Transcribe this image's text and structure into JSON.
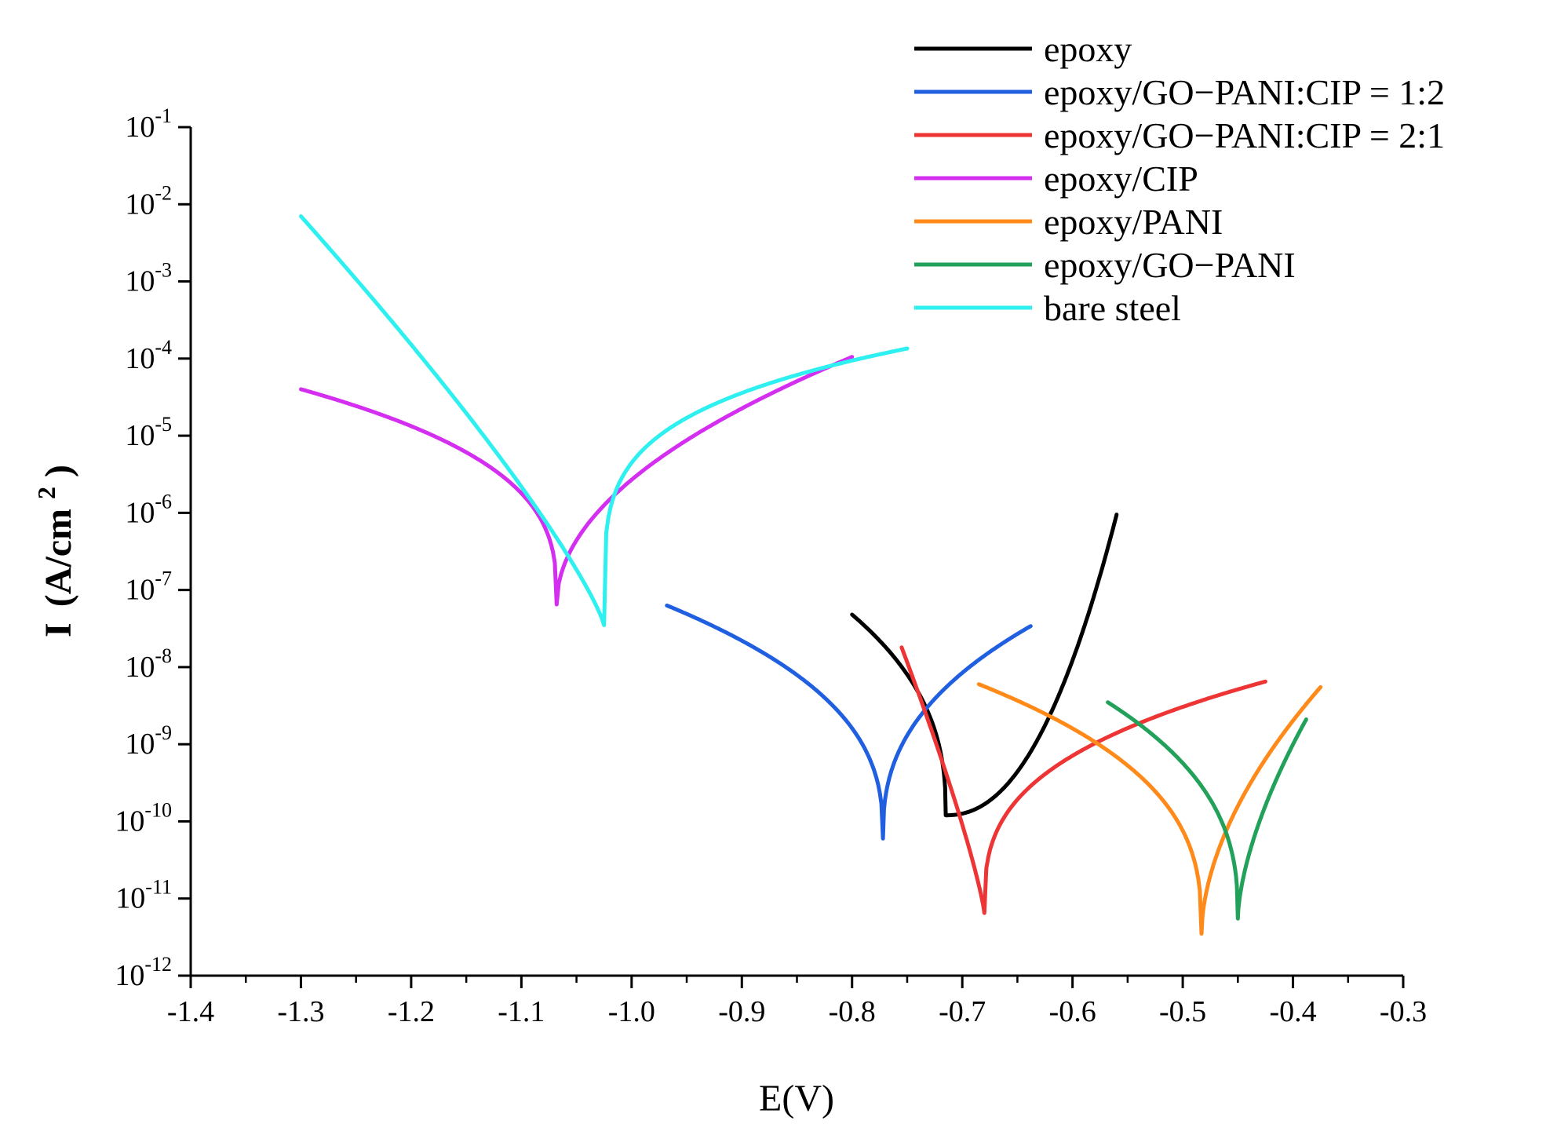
{
  "chart_data": {
    "type": "line",
    "title": "",
    "xlabel": "E(V)",
    "ylabel_main": "I",
    "ylabel_unit_pre": "(A/cm",
    "ylabel_unit_exp": "2",
    "ylabel_unit_post": ")",
    "xlim": [
      -1.4,
      -0.3
    ],
    "ylim_log10": [
      -12,
      -1
    ],
    "yscale": "log",
    "legend_position": "top-right",
    "xticks": [
      {
        "value": -1.4,
        "label": "-1.4"
      },
      {
        "value": -1.3,
        "label": "-1.3"
      },
      {
        "value": -1.2,
        "label": "-1.2"
      },
      {
        "value": -1.1,
        "label": "-1.1"
      },
      {
        "value": -1.0,
        "label": "-1.0"
      },
      {
        "value": -0.9,
        "label": "-0.9"
      },
      {
        "value": -0.8,
        "label": "-0.8"
      },
      {
        "value": -0.7,
        "label": "-0.7"
      },
      {
        "value": -0.6,
        "label": "-0.6"
      },
      {
        "value": -0.5,
        "label": "-0.5"
      },
      {
        "value": -0.4,
        "label": "-0.4"
      },
      {
        "value": -0.3,
        "label": "-0.3"
      }
    ],
    "yticks": [
      {
        "exp": -1,
        "base": "10",
        "sup": "-1"
      },
      {
        "exp": -2,
        "base": "10",
        "sup": "-2"
      },
      {
        "exp": -3,
        "base": "10",
        "sup": "-3"
      },
      {
        "exp": -4,
        "base": "10",
        "sup": "-4"
      },
      {
        "exp": -5,
        "base": "10",
        "sup": "-5"
      },
      {
        "exp": -6,
        "base": "10",
        "sup": "-6"
      },
      {
        "exp": -7,
        "base": "10",
        "sup": "-7"
      },
      {
        "exp": -8,
        "base": "10",
        "sup": "-8"
      },
      {
        "exp": -9,
        "base": "10",
        "sup": "-9"
      },
      {
        "exp": -10,
        "base": "10",
        "sup": "-10"
      },
      {
        "exp": -11,
        "base": "10",
        "sup": "-11"
      },
      {
        "exp": -12,
        "base": "10",
        "sup": "-12"
      }
    ],
    "series": [
      {
        "name": "epoxy",
        "color": "#000000",
        "ecorr": -0.715,
        "ymin": 1.2e-10,
        "cathodic": {
          "x": -0.8,
          "y": 4.8e-08
        },
        "anodic": {
          "x": -0.56,
          "y": 9.5e-07
        },
        "cathodic_shape": 2.5,
        "anodic_shape": 0.45
      },
      {
        "name": "epoxy/GO−PANI:CIP = 1:2",
        "color": "#1f5fe0",
        "ecorr": -0.772,
        "ymin": 6e-11,
        "cathodic": {
          "x": -0.968,
          "y": 6.3e-08
        },
        "anodic": {
          "x": -0.638,
          "y": 3.4e-08
        },
        "cathodic_shape": 2.6,
        "anodic_shape": 2.5
      },
      {
        "name": "epoxy/GO−PANI:CIP = 2:1",
        "color": "#ee3535",
        "ecorr": -0.68,
        "ymin": 6.5e-12,
        "cathodic": {
          "x": -0.755,
          "y": 1.8e-08
        },
        "anodic": {
          "x": -0.425,
          "y": 6.5e-09
        },
        "cathodic_shape": 1.2,
        "anodic_shape": 3.0
      },
      {
        "name": "epoxy/CIP",
        "color": "#d42ef0",
        "ecorr": -1.068,
        "ymin": 6.5e-08,
        "cathodic": {
          "x": -1.3,
          "y": 4e-05
        },
        "anodic": {
          "x": -0.8,
          "y": 0.000105
        },
        "cathodic_shape": 3.0,
        "anodic_shape": 2.0
      },
      {
        "name": "epoxy/PANI",
        "color": "#ff8a1a",
        "ecorr": -0.483,
        "ymin": 3.5e-12,
        "cathodic": {
          "x": -0.685,
          "y": 6e-09
        },
        "anodic": {
          "x": -0.375,
          "y": 5.5e-09
        },
        "cathodic_shape": 2.8,
        "anodic_shape": 1.8
      },
      {
        "name": "epoxy/GO−PANI",
        "color": "#22a15a",
        "ecorr": -0.45,
        "ymin": 5.5e-12,
        "cathodic": {
          "x": -0.568,
          "y": 3.5e-09
        },
        "anodic": {
          "x": -0.388,
          "y": 2.1e-09
        },
        "cathodic_shape": 2.6,
        "anodic_shape": 1.6
      },
      {
        "name": "bare steel",
        "color": "#2ef0f0",
        "ecorr": -1.025,
        "ymin": 3.5e-08,
        "cathodic": {
          "x": -1.3,
          "y": 0.007
        },
        "anodic": {
          "x": -0.75,
          "y": 0.000135
        },
        "cathodic_shape": 1.2,
        "anodic_shape": 4.5
      }
    ]
  }
}
